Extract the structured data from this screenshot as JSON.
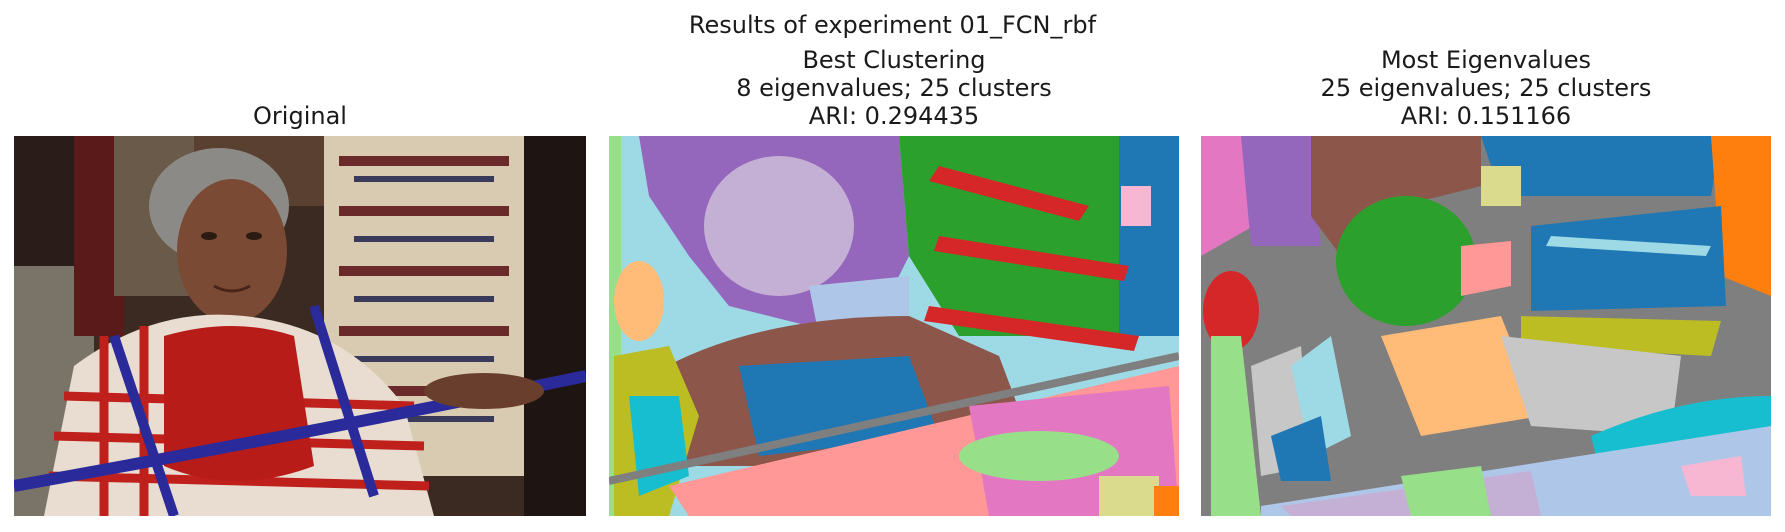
{
  "figure": {
    "suptitle": "Results of experiment 01_FCN_rbf"
  },
  "panels": [
    {
      "title_lines": [
        "Original"
      ]
    },
    {
      "title_lines": [
        "Best Clustering",
        "8 eigenvalues; 25 clusters",
        "ARI: 0.294435"
      ]
    },
    {
      "title_lines": [
        "Most Eigenvalues",
        "25 eigenvalues; 25 clusters",
        "ARI: 0.151166"
      ]
    }
  ],
  "colors": {
    "tab_blue": "#1f77b4",
    "tab_orange": "#ff7f0e",
    "tab_green": "#2ca02c",
    "tab_red": "#d62728",
    "tab_purple": "#9467bd",
    "tab_brown": "#8c564b",
    "tab_pink": "#e377c2",
    "tab_gray": "#7f7f7f",
    "tab_olive": "#bcbd22",
    "tab_cyan": "#17becf",
    "light_blue": "#aec7e8",
    "light_orange": "#ffbb78",
    "light_green": "#98df8a",
    "light_red": "#ff9896",
    "light_purple": "#c5b0d5",
    "light_pink": "#f7b6d2",
    "light_olive": "#dbdb8d",
    "light_cyan": "#9edae5"
  }
}
